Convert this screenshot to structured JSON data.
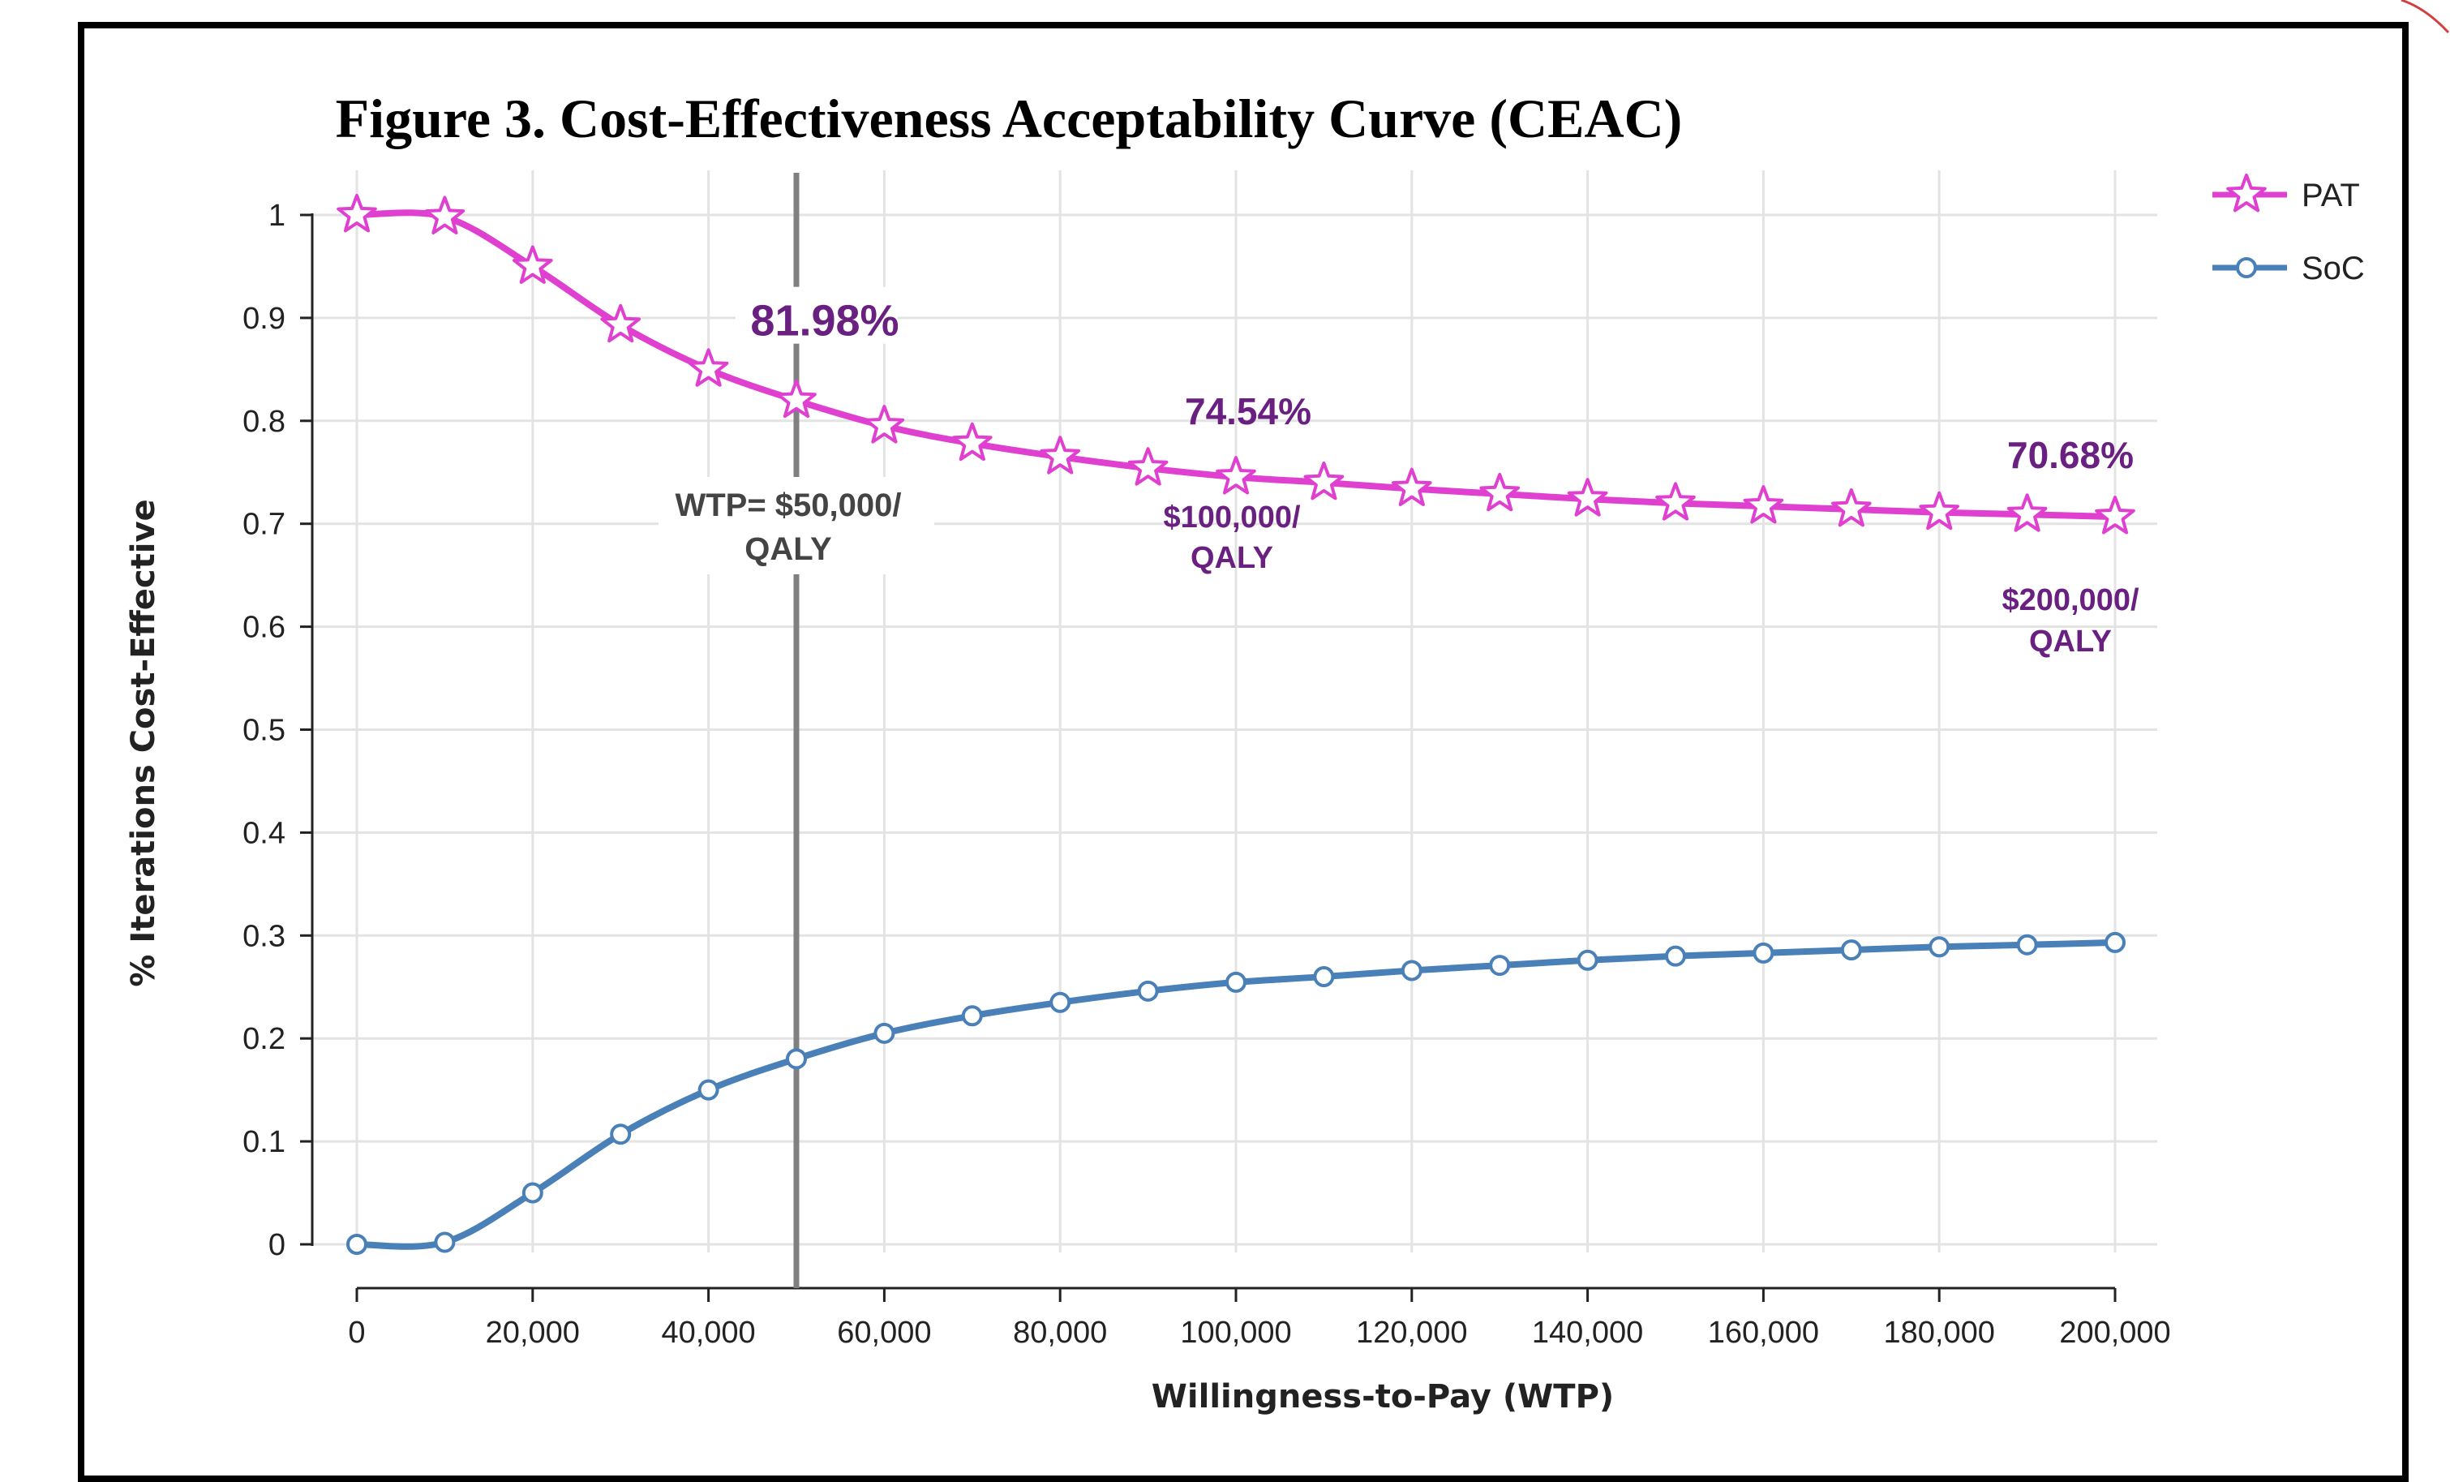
{
  "chart_data": {
    "type": "line",
    "title": "Figure 3. Cost-Effectiveness Acceptability Curve (CEAC)",
    "xlabel": "Willingness-to-Pay (WTP)",
    "ylabel": "% Iterations Cost-Effective",
    "xlim": [
      0,
      200000
    ],
    "ylim": [
      0,
      1
    ],
    "x_ticks": [
      0,
      20000,
      40000,
      60000,
      80000,
      100000,
      120000,
      140000,
      160000,
      180000,
      200000
    ],
    "x_tick_labels": [
      "0",
      "20,000",
      "40,000",
      "60,000",
      "80,000",
      "100,000",
      "120,000",
      "140,000",
      "160,000",
      "180,000",
      "200,000"
    ],
    "y_ticks": [
      0,
      0.1,
      0.2,
      0.3,
      0.4,
      0.5,
      0.6,
      0.7,
      0.8,
      0.9,
      1
    ],
    "y_tick_labels": [
      "0",
      "0.1",
      "0.2",
      "0.3",
      "0.4",
      "0.5",
      "0.6",
      "0.7",
      "0.8",
      "0.9",
      "1"
    ],
    "grid": true,
    "legend_position": "top-right",
    "x": [
      0,
      10000,
      20000,
      30000,
      40000,
      50000,
      60000,
      70000,
      80000,
      90000,
      100000,
      110000,
      120000,
      130000,
      140000,
      150000,
      160000,
      170000,
      180000,
      190000,
      200000
    ],
    "series": [
      {
        "name": "PAT",
        "color": "#e040d0",
        "marker": "star",
        "values": [
          1.0,
          0.998,
          0.95,
          0.893,
          0.85,
          0.8198,
          0.795,
          0.778,
          0.765,
          0.754,
          0.7454,
          0.74,
          0.734,
          0.729,
          0.724,
          0.72,
          0.717,
          0.714,
          0.711,
          0.709,
          0.7068
        ]
      },
      {
        "name": "SoC",
        "color": "#4a80b8",
        "marker": "circle",
        "values": [
          0.0,
          0.002,
          0.05,
          0.107,
          0.15,
          0.1802,
          0.205,
          0.222,
          0.235,
          0.246,
          0.2546,
          0.26,
          0.266,
          0.271,
          0.276,
          0.28,
          0.283,
          0.286,
          0.289,
          0.291,
          0.2932
        ]
      }
    ],
    "reference_line": {
      "x": 50000,
      "label_line1": "WTP= $50,000/",
      "label_line2": "QALY",
      "color": "#808080"
    },
    "annotations": [
      {
        "x": 50000,
        "y": 0.8198,
        "value_text": "81.98%",
        "sub1": "",
        "sub2": ""
      },
      {
        "x": 100000,
        "y": 0.7454,
        "value_text": "74.54%",
        "sub1": "$100,000/",
        "sub2": "QALY"
      },
      {
        "x": 200000,
        "y": 0.7068,
        "value_text": "70.68%",
        "sub1": "$200,000/",
        "sub2": "QALY"
      }
    ],
    "annotation_color": "#6a2080"
  }
}
